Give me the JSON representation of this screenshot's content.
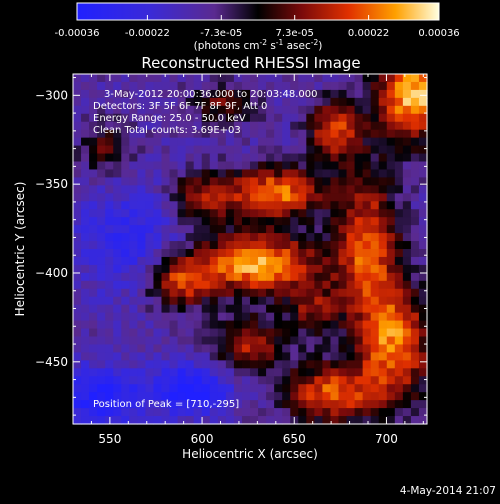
{
  "chart_data": {
    "type": "heatmap",
    "title": "Reconstructed RHESSI Image",
    "xlabel": "Heliocentric X (arcsec)",
    "ylabel": "Heliocentric Y (arcsec)",
    "xlim": [
      530,
      722
    ],
    "ylim": [
      -485,
      -288
    ],
    "xticks": [
      550,
      600,
      650,
      700
    ],
    "yticks": [
      -300,
      -350,
      -400,
      -450
    ],
    "colorbar": {
      "min": -0.00036,
      "max": 0.00036,
      "tick_labels": [
        "-0.00036",
        "-0.00022",
        "-7.3e-05",
        "7.3e-05",
        "0.00022",
        "0.00036"
      ],
      "tick_values": [
        -0.00036,
        -0.00022,
        -7.3e-05,
        7.3e-05,
        0.00022,
        0.00036
      ],
      "unit_base": "(photons cm",
      "unit_sup1": "-2",
      "unit_mid": " s",
      "unit_sup2": "-1",
      "unit_mid2": " asec",
      "unit_sup3": "-2",
      "unit_end": ")"
    },
    "annotations": {
      "time": "3-May-2012 20:00:36.000 to 20:03:48.000",
      "detectors": "Detectors: 3F 5F 6F 7F 8F 9F, Att 0",
      "energy": "Energy Range: 25.0 - 50.0 keV",
      "clean": "Clean     Total counts: 3.69E+03",
      "peak": "Position of Peak = [710,-295]"
    },
    "peak": [
      710,
      -295
    ],
    "sources": [
      {
        "x": 715,
        "y": -300,
        "amp": 1.0,
        "sx": 14,
        "sy": 18
      },
      {
        "x": 672,
        "y": -320,
        "amp": 0.7,
        "sx": 10,
        "sy": 12
      },
      {
        "x": 640,
        "y": -355,
        "amp": 0.85,
        "sx": 18,
        "sy": 10
      },
      {
        "x": 600,
        "y": -358,
        "amp": 0.55,
        "sx": 12,
        "sy": 10
      },
      {
        "x": 630,
        "y": -395,
        "amp": 0.95,
        "sx": 24,
        "sy": 12
      },
      {
        "x": 588,
        "y": -405,
        "amp": 0.65,
        "sx": 12,
        "sy": 10
      },
      {
        "x": 690,
        "y": -385,
        "amp": 0.75,
        "sx": 12,
        "sy": 30
      },
      {
        "x": 705,
        "y": -440,
        "amp": 0.8,
        "sx": 14,
        "sy": 22
      },
      {
        "x": 625,
        "y": -440,
        "amp": 0.6,
        "sx": 14,
        "sy": 10
      },
      {
        "x": 670,
        "y": -468,
        "amp": 0.75,
        "sx": 18,
        "sy": 12
      },
      {
        "x": 548,
        "y": -330,
        "amp": 0.4,
        "sx": 10,
        "sy": 10
      },
      {
        "x": 612,
        "y": -305,
        "amp": 0.45,
        "sx": 12,
        "sy": 8
      },
      {
        "x": 660,
        "y": -420,
        "amp": 0.45,
        "sx": 10,
        "sy": 10
      },
      {
        "x": 545,
        "y": -470,
        "amp": -0.5,
        "sx": 18,
        "sy": 12
      },
      {
        "x": 595,
        "y": -465,
        "amp": -0.6,
        "sx": 14,
        "sy": 10
      },
      {
        "x": 560,
        "y": -380,
        "amp": -0.35,
        "sx": 20,
        "sy": 20
      }
    ],
    "grid": false
  },
  "footer": {
    "timestamp": "4-May-2014 21:07"
  }
}
